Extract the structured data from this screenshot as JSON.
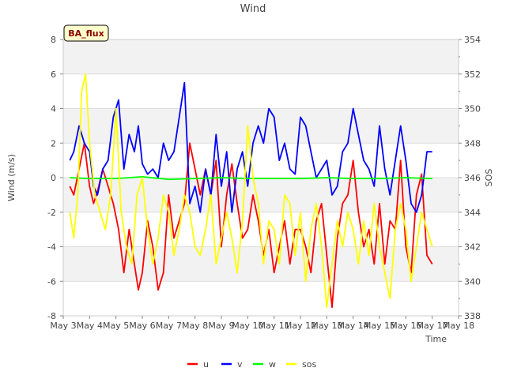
{
  "chart_data": {
    "type": "line",
    "title": "Wind",
    "badge": "BA_flux",
    "xlabel": "Time",
    "ylabel": "Wind (m/s)",
    "y2label": "SOS",
    "xlim": [
      3,
      18
    ],
    "ylim": [
      -8,
      8
    ],
    "y2lim": [
      338,
      354
    ],
    "x_ticks": [
      3,
      4,
      5,
      6,
      7,
      8,
      9,
      10,
      11,
      12,
      13,
      14,
      15,
      16,
      17,
      18
    ],
    "x_tick_labels": [
      "May 3",
      "May 4",
      "May 5",
      "May 6",
      "May 7",
      "May 8",
      "May 9",
      "May 10",
      "May 11",
      "May 12",
      "May 13",
      "May 14",
      "May 15",
      "May 16",
      "May 17",
      "May 18"
    ],
    "y_ticks": [
      -8,
      -6,
      -4,
      -2,
      0,
      2,
      4,
      6,
      8
    ],
    "y2_ticks": [
      338,
      340,
      342,
      344,
      346,
      348,
      350,
      352,
      354
    ],
    "series": [
      {
        "name": "u",
        "color": "#ff0000",
        "axis": "left",
        "x": [
          3.25,
          3.4,
          3.6,
          3.8,
          4.0,
          4.15,
          4.3,
          4.5,
          4.7,
          4.9,
          5.1,
          5.3,
          5.5,
          5.7,
          5.85,
          6.0,
          6.2,
          6.4,
          6.6,
          6.8,
          7.0,
          7.2,
          7.4,
          7.6,
          7.8,
          8.0,
          8.2,
          8.4,
          8.6,
          8.8,
          9.0,
          9.2,
          9.4,
          9.6,
          9.8,
          10.0,
          10.2,
          10.4,
          10.6,
          10.8,
          11.0,
          11.2,
          11.4,
          11.6,
          11.8,
          12.0,
          12.2,
          12.4,
          12.6,
          12.8,
          13.0,
          13.2,
          13.4,
          13.6,
          13.8,
          14.0,
          14.2,
          14.4,
          14.6,
          14.8,
          15.0,
          15.2,
          15.4,
          15.6,
          15.8,
          16.0,
          16.2,
          16.4,
          16.6,
          16.8,
          17.0
        ],
        "y": [
          -0.5,
          -1.0,
          0.5,
          2.0,
          -0.5,
          -1.5,
          -0.8,
          0.5,
          -0.5,
          -1.5,
          -3.0,
          -5.5,
          -3.0,
          -5.0,
          -6.5,
          -5.5,
          -2.5,
          -4.0,
          -6.5,
          -5.5,
          -1.0,
          -3.5,
          -2.5,
          -1.5,
          2.0,
          0.5,
          -1.0,
          0.5,
          -1.0,
          1.0,
          -4.0,
          -1.0,
          0.8,
          -1.5,
          -3.5,
          -3.0,
          -1.0,
          -2.5,
          -4.5,
          -3.0,
          -5.5,
          -4.0,
          -2.5,
          -5.0,
          -3.0,
          -3.0,
          -4.0,
          -5.5,
          -2.5,
          -1.5,
          -4.5,
          -7.5,
          -3.5,
          -1.5,
          -1.0,
          1.0,
          -2.0,
          -4.0,
          -3.0,
          -5.0,
          -1.5,
          -5.0,
          -2.5,
          -3.0,
          1.0,
          -4.0,
          -5.5,
          -1.0,
          0.2,
          -4.5,
          -5.0
        ]
      },
      {
        "name": "v",
        "color": "#0000ff",
        "axis": "left",
        "x": [
          3.25,
          3.4,
          3.6,
          3.8,
          4.0,
          4.15,
          4.3,
          4.5,
          4.7,
          4.9,
          5.1,
          5.3,
          5.5,
          5.7,
          5.85,
          6.0,
          6.2,
          6.4,
          6.6,
          6.8,
          7.0,
          7.2,
          7.4,
          7.6,
          7.8,
          8.0,
          8.2,
          8.4,
          8.6,
          8.8,
          9.0,
          9.2,
          9.4,
          9.6,
          9.8,
          10.0,
          10.2,
          10.4,
          10.6,
          10.8,
          11.0,
          11.2,
          11.4,
          11.6,
          11.8,
          12.0,
          12.2,
          12.4,
          12.6,
          12.8,
          13.0,
          13.2,
          13.4,
          13.6,
          13.8,
          14.0,
          14.2,
          14.4,
          14.6,
          14.8,
          15.0,
          15.2,
          15.4,
          15.6,
          15.8,
          16.0,
          16.2,
          16.4,
          16.6,
          16.8,
          17.0
        ],
        "y": [
          1.0,
          1.5,
          3.0,
          2.0,
          1.5,
          -0.5,
          -1.0,
          0.5,
          1.0,
          3.5,
          4.5,
          0.5,
          2.5,
          1.5,
          3.0,
          0.8,
          0.2,
          0.5,
          0.0,
          2.0,
          1.0,
          1.5,
          3.5,
          5.5,
          -1.5,
          -0.5,
          -2.0,
          0.5,
          -1.0,
          2.5,
          -0.5,
          1.5,
          -2.0,
          0.5,
          1.5,
          -0.5,
          2.0,
          3.0,
          2.0,
          4.0,
          3.5,
          1.0,
          2.0,
          0.5,
          0.2,
          3.5,
          3.0,
          1.5,
          0.0,
          0.5,
          1.0,
          -1.0,
          -0.5,
          1.5,
          2.0,
          4.0,
          2.5,
          1.0,
          0.5,
          -0.5,
          3.0,
          0.5,
          -1.0,
          1.0,
          3.0,
          1.0,
          -1.5,
          -2.0,
          -1.0,
          1.5,
          1.5
        ]
      },
      {
        "name": "w",
        "color": "#00ff00",
        "axis": "left",
        "x": [
          3.25,
          4.0,
          5.0,
          6.0,
          7.0,
          8.0,
          9.0,
          10.0,
          11.0,
          12.0,
          13.0,
          14.0,
          15.0,
          16.0,
          17.0
        ],
        "y": [
          0.0,
          -0.05,
          -0.05,
          0.05,
          -0.1,
          -0.05,
          0.0,
          -0.05,
          -0.05,
          -0.05,
          0.0,
          -0.05,
          -0.05,
          0.0,
          -0.05
        ]
      },
      {
        "name": "sos",
        "color": "#ffff00",
        "axis": "right",
        "x": [
          3.25,
          3.4,
          3.55,
          3.7,
          3.85,
          4.0,
          4.2,
          4.4,
          4.6,
          4.8,
          5.0,
          5.2,
          5.4,
          5.6,
          5.8,
          6.0,
          6.2,
          6.4,
          6.6,
          6.8,
          7.0,
          7.2,
          7.4,
          7.6,
          7.8,
          8.0,
          8.2,
          8.4,
          8.6,
          8.8,
          9.0,
          9.2,
          9.4,
          9.6,
          9.8,
          10.0,
          10.2,
          10.4,
          10.6,
          10.8,
          11.0,
          11.2,
          11.4,
          11.6,
          11.8,
          12.0,
          12.2,
          12.4,
          12.6,
          12.8,
          13.0,
          13.2,
          13.4,
          13.6,
          13.8,
          14.0,
          14.2,
          14.4,
          14.6,
          14.8,
          15.0,
          15.2,
          15.4,
          15.6,
          15.8,
          16.0,
          16.2,
          16.4,
          16.6,
          16.8,
          17.0
        ],
        "y": [
          344.0,
          342.5,
          345.0,
          351.0,
          352.0,
          348.0,
          345.0,
          344.0,
          343.0,
          345.0,
          350.0,
          344.0,
          342.0,
          341.0,
          345.0,
          346.0,
          343.0,
          341.0,
          342.5,
          345.0,
          344.0,
          341.5,
          343.0,
          345.0,
          344.0,
          342.0,
          341.5,
          343.0,
          345.0,
          341.0,
          342.5,
          344.0,
          342.5,
          340.5,
          343.5,
          349.0,
          346.0,
          344.5,
          341.0,
          343.5,
          343.0,
          341.0,
          345.0,
          344.5,
          341.5,
          344.0,
          340.0,
          343.0,
          344.5,
          342.0,
          338.5,
          341.0,
          343.5,
          342.0,
          344.0,
          343.0,
          341.0,
          343.5,
          341.5,
          344.5,
          342.0,
          340.5,
          339.0,
          343.0,
          344.5,
          343.0,
          340.0,
          342.0,
          344.0,
          343.0,
          342.0
        ]
      }
    ]
  }
}
